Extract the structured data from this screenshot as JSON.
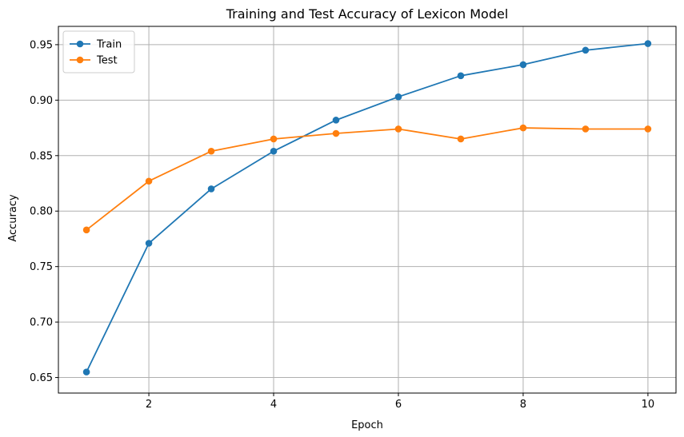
{
  "chart_data": {
    "type": "line",
    "title": "Training and Test Accuracy of Lexicon Model",
    "xlabel": "Epoch",
    "ylabel": "Accuracy",
    "xlim": [
      0.55,
      10.45
    ],
    "ylim": [
      0.636,
      0.9665
    ],
    "xticks": [
      2,
      4,
      6,
      8,
      10
    ],
    "yticks": [
      0.65,
      0.7,
      0.75,
      0.8,
      0.85,
      0.9,
      0.95
    ],
    "ytick_labels": [
      "0.65",
      "0.70",
      "0.75",
      "0.80",
      "0.85",
      "0.90",
      "0.95"
    ],
    "grid": true,
    "legend_position": "top-left",
    "x": [
      1,
      2,
      3,
      4,
      5,
      6,
      7,
      8,
      9,
      10
    ],
    "series": [
      {
        "name": "Train",
        "color": "#1f77b4",
        "values": [
          0.655,
          0.771,
          0.82,
          0.854,
          0.882,
          0.903,
          0.922,
          0.932,
          0.945,
          0.951
        ]
      },
      {
        "name": "Test",
        "color": "#ff7f0e",
        "values": [
          0.783,
          0.827,
          0.854,
          0.865,
          0.87,
          0.874,
          0.865,
          0.875,
          0.874,
          0.874
        ]
      }
    ]
  }
}
